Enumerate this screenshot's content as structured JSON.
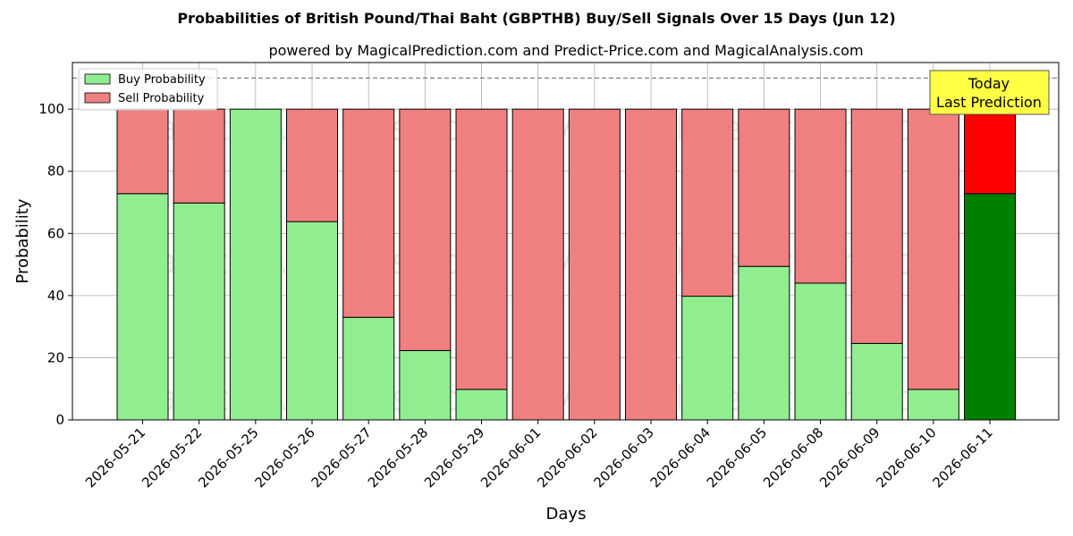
{
  "chart_data": {
    "type": "bar",
    "stacked": true,
    "title": "Probabilities of British Pound/Thai Baht (GBPTHB) Buy/Sell Signals Over 15 Days (Jun 12)",
    "subtitle": "powered by MagicalPrediction.com and Predict-Price.com and MagicalAnalysis.com",
    "xlabel": "Days",
    "ylabel": "Probability",
    "ylim": [
      0,
      115
    ],
    "yticks": [
      0,
      20,
      40,
      60,
      80,
      100
    ],
    "reference_line": 110,
    "grid": true,
    "legend_position": "top-left",
    "categories": [
      "2026-05-21",
      "2026-05-22",
      "2026-05-25",
      "2026-05-26",
      "2026-05-27",
      "2026-05-28",
      "2026-05-29",
      "2026-06-01",
      "2026-06-02",
      "2026-06-03",
      "2026-06-04",
      "2026-06-05",
      "2026-06-08",
      "2026-06-09",
      "2026-06-10",
      "2026-06-11"
    ],
    "series": [
      {
        "name": "Buy Probability",
        "color": "#90ee90",
        "values": [
          72.8,
          69.8,
          100,
          63.8,
          33,
          22.3,
          9.8,
          0,
          0,
          0,
          39.8,
          49.4,
          44,
          24.6,
          9.8,
          72.8
        ]
      },
      {
        "name": "Sell Probability",
        "color": "#f08080",
        "values": [
          27.2,
          30.2,
          0,
          36.2,
          67,
          77.7,
          90.2,
          100,
          100,
          100,
          60.2,
          50.6,
          56,
          75.4,
          90.2,
          27.2
        ]
      }
    ],
    "highlight": {
      "index": 15,
      "buy_color": "#008000",
      "sell_color": "#ff0000",
      "annotation": [
        "Today",
        "Last Prediction"
      ],
      "annotation_bg": "#ffff44"
    },
    "watermarks": [
      "MagicalAnalysis.com",
      "MagicalPrediction.com"
    ]
  }
}
